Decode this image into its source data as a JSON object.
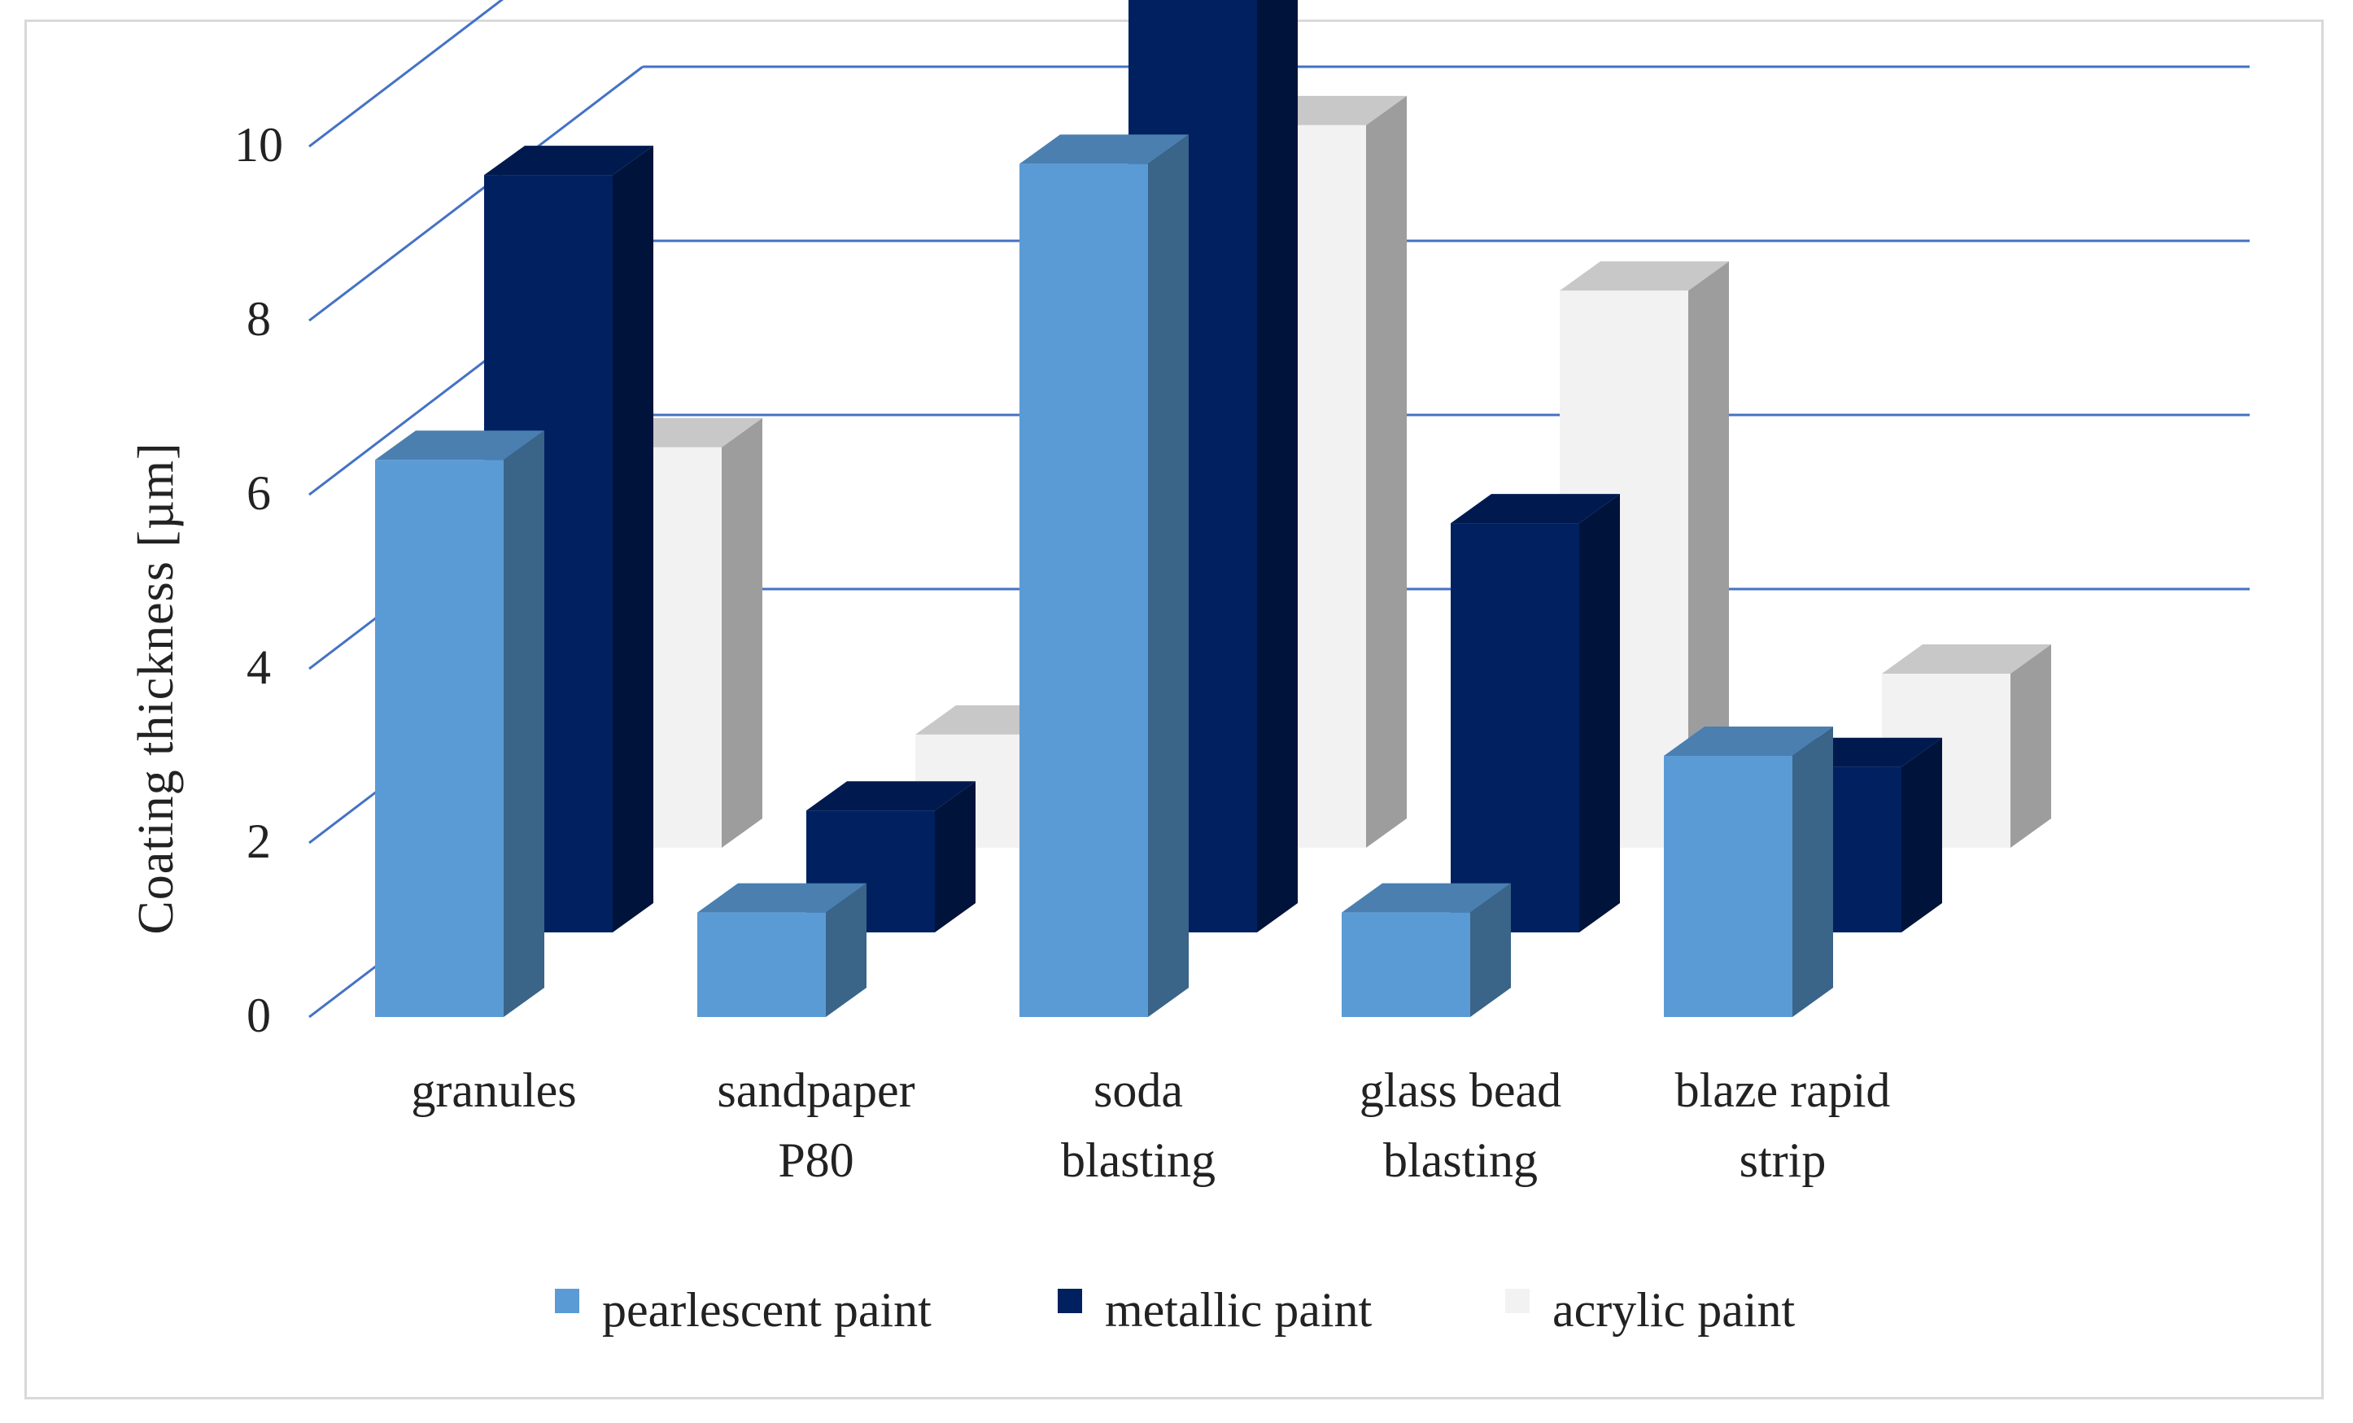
{
  "chart_data": {
    "type": "bar",
    "title": "",
    "xlabel": "",
    "ylabel": "Coating  thickness [µm]",
    "ylim": [
      0,
      12
    ],
    "yticks": [
      "0",
      "2",
      "4",
      "6",
      "8",
      "10",
      "12"
    ],
    "categories": [
      [
        "granules"
      ],
      [
        "sandpaper",
        "P80"
      ],
      [
        "soda",
        "blasting"
      ],
      [
        "glass bead",
        "blasting"
      ],
      [
        "blaze rapid",
        "strip"
      ]
    ],
    "series": [
      {
        "name": "pearlescent paint",
        "values": [
          6.4,
          1.2,
          9.8,
          1.2,
          3.0
        ]
      },
      {
        "name": "metallic paint",
        "values": [
          8.7,
          1.4,
          10.8,
          4.7,
          1.9
        ]
      },
      {
        "name": "acrylic paint",
        "values": [
          4.6,
          1.3,
          8.3,
          6.4,
          2.0
        ]
      }
    ],
    "grid": true,
    "legend_position": "bottom",
    "colors": {
      "pearlescent": {
        "front": "#5b9bd5",
        "side": "#3a6488",
        "top": "#4a7fb0"
      },
      "metallic": {
        "front": "#002060",
        "side": "#00133a",
        "top": "#001a4f"
      },
      "acrylic": {
        "front": "#f2f2f2",
        "side": "#9d9d9d",
        "top": "#c8c8c8"
      },
      "gridline": "#4472c4"
    }
  }
}
